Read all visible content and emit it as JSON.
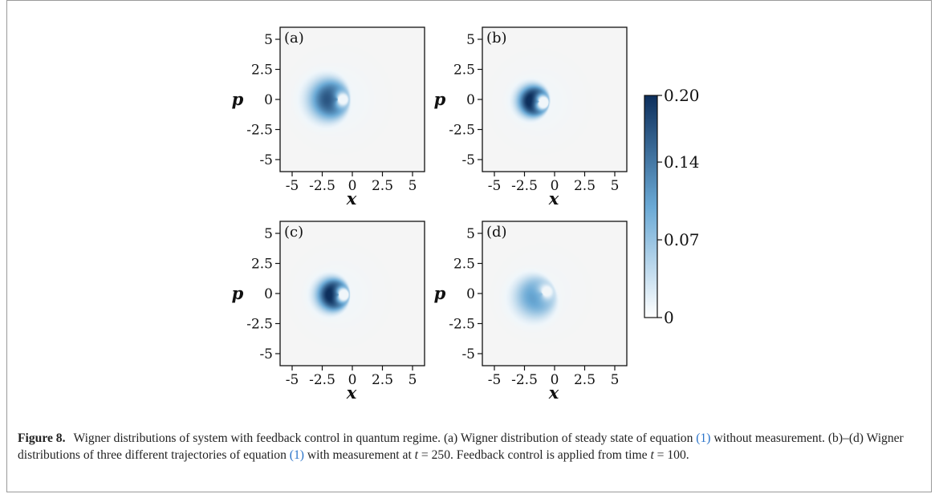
{
  "chart_data": {
    "type": "heatmap",
    "panels": [
      {
        "label": "(a)",
        "peak": 0.16,
        "cx": -1.2,
        "cy": 0.0,
        "r": 1.7,
        "sigma": 0.85,
        "theta": 3.14159,
        "wmax": 1.15,
        "wmin": 0.08,
        "bg": 0.06
      },
      {
        "label": "(b)",
        "peak": 0.2,
        "cx": -1.3,
        "cy": -0.2,
        "r": 1.55,
        "sigma": 0.7,
        "theta": 3.0,
        "wmax": 0.9,
        "wmin": 0.05,
        "bg": 0.04
      },
      {
        "label": "(c)",
        "peak": 0.2,
        "cx": -1.1,
        "cy": -0.1,
        "r": 1.55,
        "sigma": 0.72,
        "theta": 3.14159,
        "wmax": 0.95,
        "wmin": 0.05,
        "bg": 0.04
      },
      {
        "label": "(d)",
        "peak": 0.1,
        "cx": -1.0,
        "cy": 0.0,
        "r": 1.75,
        "sigma": 0.75,
        "theta": 3.6,
        "wmax": 1.3,
        "wmin": 0.15,
        "bg": 0.06
      }
    ],
    "xlabel": "x",
    "ylabel": "p",
    "xlim": [
      -6,
      6
    ],
    "ylim": [
      -6,
      6
    ],
    "x_ticks": [
      -5,
      -2.5,
      0,
      2.5,
      5
    ],
    "x_tick_labels": [
      "-5",
      "-2.5",
      "0",
      "2.5",
      "5"
    ],
    "y_ticks": [
      5,
      2.5,
      0,
      -2.5,
      -5
    ],
    "y_tick_labels": [
      "5",
      "2.5",
      "0",
      "-2.5",
      "-5"
    ],
    "colorbar": {
      "min": 0,
      "max": 0.2,
      "ticks": [
        0.2,
        0.14,
        0.07,
        0
      ],
      "tick_labels": [
        "0.20",
        "0.14",
        "0.07",
        "0"
      ],
      "colors": [
        "#ffffff",
        "#6aa9d5",
        "#0d2f5c"
      ]
    }
  },
  "caption": {
    "figure_label": "Figure 8.",
    "part1": "Wigner distributions of system with feedback control in quantum regime. (a) Wigner distribution of steady state of equation ",
    "ref1": "(1)",
    "part2": " without measurement. (b)–(d) Wigner distributions of three different trajectories of equation ",
    "ref2": "(1)",
    "part3": " with measurement at ",
    "math1": "t",
    "part4": " = 250. Feedback control is applied from time ",
    "math2": "t",
    "part5": " = 100."
  }
}
